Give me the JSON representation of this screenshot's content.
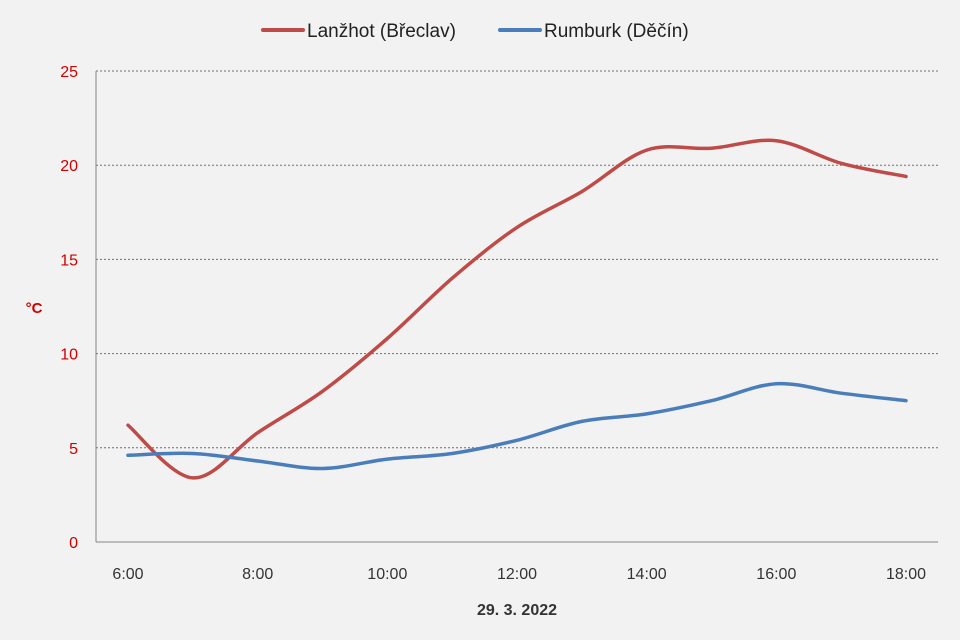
{
  "chart_data": {
    "type": "line",
    "title": "",
    "xlabel": "29. 3. 2022",
    "ylabel": "°C",
    "x": [
      "6:00",
      "7:00",
      "8:00",
      "9:00",
      "10:00",
      "11:00",
      "12:00",
      "13:00",
      "14:00",
      "15:00",
      "16:00",
      "17:00",
      "18:00"
    ],
    "x_tick_labels": [
      "6:00",
      "8:00",
      "10:00",
      "12:00",
      "14:00",
      "16:00",
      "18:00"
    ],
    "ylim": [
      0,
      25
    ],
    "y_ticks": [
      0,
      5,
      10,
      15,
      20,
      25
    ],
    "grid": "horizontal dashed",
    "legend_position": "top",
    "series": [
      {
        "name": "Lanžhot (Břeclav)",
        "color": "#be4b48",
        "values": [
          6.2,
          3.4,
          5.8,
          8.0,
          10.8,
          14.0,
          16.7,
          18.6,
          20.8,
          20.9,
          21.3,
          20.1,
          19.4
        ]
      },
      {
        "name": "Rumburk (Děčín)",
        "color": "#4a7ebb",
        "values": [
          4.6,
          4.7,
          4.3,
          3.9,
          4.4,
          4.7,
          5.4,
          6.4,
          6.8,
          7.5,
          8.4,
          7.9,
          7.5
        ]
      }
    ],
    "axis_label_color": "#d00000"
  }
}
